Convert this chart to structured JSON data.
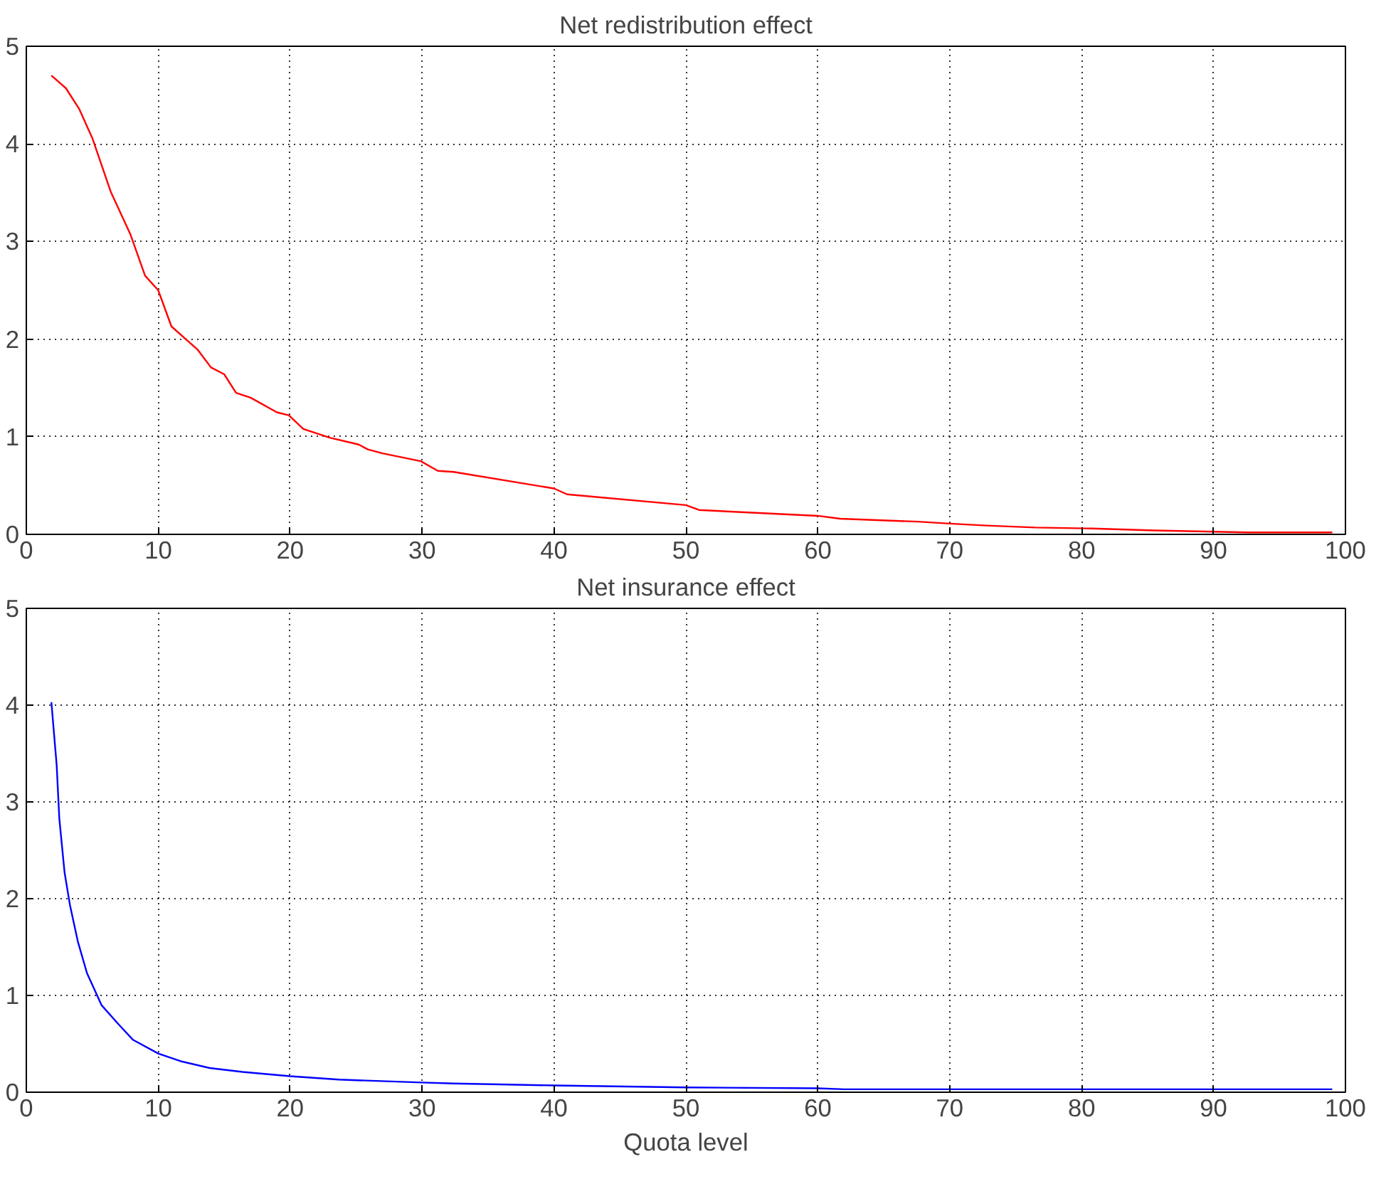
{
  "chart_data": [
    {
      "type": "line",
      "title": "Net redistribution effect",
      "xlim": [
        0,
        100
      ],
      "ylim": [
        0,
        5
      ],
      "xticks": [
        0,
        10,
        20,
        30,
        40,
        50,
        60,
        70,
        80,
        90,
        100
      ],
      "yticks": [
        0,
        1,
        2,
        3,
        4,
        5
      ],
      "grid": true,
      "line_style": "solid",
      "series": [
        {
          "color": "#ff0000",
          "x": [
            1.9,
            3.0,
            4.0,
            5.0,
            6.4,
            7.9,
            9.0,
            10,
            11,
            13,
            14,
            15,
            15.9,
            17,
            19,
            19.9,
            21,
            23,
            25.2,
            25.9,
            27,
            29.9,
            31.2,
            32.4,
            40,
            41,
            50,
            51,
            55.3,
            60,
            61.7,
            67.6,
            70,
            72.8,
            76.5,
            80.8,
            85.5,
            92.6,
            99
          ],
          "values": [
            4.7,
            4.57,
            4.36,
            4.06,
            3.51,
            3.07,
            2.65,
            2.5,
            2.13,
            1.89,
            1.71,
            1.64,
            1.45,
            1.4,
            1.25,
            1.22,
            1.08,
            0.99,
            0.92,
            0.87,
            0.83,
            0.75,
            0.65,
            0.64,
            0.47,
            0.41,
            0.3,
            0.25,
            0.22,
            0.19,
            0.16,
            0.13,
            0.11,
            0.09,
            0.07,
            0.06,
            0.04,
            0.02,
            0.02
          ]
        }
      ]
    },
    {
      "type": "line",
      "title": "Net insurance effect",
      "xlabel": "Quota level",
      "xlim": [
        0,
        100
      ],
      "ylim": [
        0,
        5
      ],
      "xticks": [
        0,
        10,
        20,
        30,
        40,
        50,
        60,
        70,
        80,
        90,
        100
      ],
      "yticks": [
        0,
        1,
        2,
        3,
        4,
        5
      ],
      "grid": true,
      "line_style": "solid",
      "series": [
        {
          "color": "#0000ff",
          "x": [
            1.9,
            2.3,
            2.5,
            2.9,
            3.3,
            3.9,
            4.6,
            5.7,
            7.0,
            8.1,
            10,
            11.7,
            13.9,
            16.4,
            20,
            23.7,
            30,
            32.4,
            40,
            50,
            60,
            62,
            70,
            80,
            90,
            99
          ],
          "values": [
            4.03,
            3.38,
            2.83,
            2.27,
            1.94,
            1.56,
            1.23,
            0.9,
            0.7,
            0.54,
            0.4,
            0.32,
            0.25,
            0.21,
            0.165,
            0.13,
            0.1,
            0.09,
            0.07,
            0.05,
            0.04,
            0.03,
            0.03,
            0.03,
            0.03,
            0.03
          ]
        }
      ]
    }
  ]
}
